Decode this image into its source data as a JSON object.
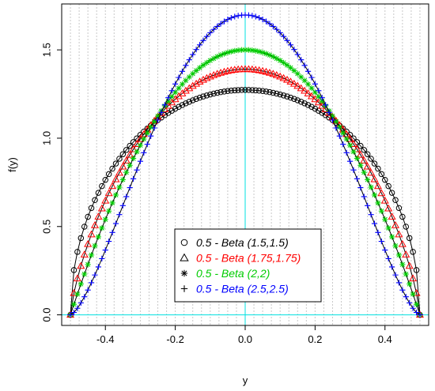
{
  "chart_data": {
    "type": "scatter",
    "title": "",
    "xlabel": "y",
    "ylabel": "f(y)",
    "xlim": [
      -0.525,
      0.525
    ],
    "ylim": [
      -0.06,
      1.76
    ],
    "x_ticks": [
      -0.4,
      -0.2,
      0.0,
      0.2,
      0.4
    ],
    "x_tick_labels": [
      "-0.4",
      "-0.2",
      "0.0",
      "0.2",
      "0.4"
    ],
    "y_ticks": [
      0.0,
      0.5,
      1.0,
      1.5
    ],
    "y_tick_labels": [
      "0.0",
      "0.5",
      "1.0",
      "1.5"
    ],
    "vertical_grid": "dotted gray lines every 0.025, plus cyan line at x = 0",
    "horizontal_reference": "cyan line at y = 0",
    "legend_position": "bottom-center",
    "density": "f(y) = Beta(y + 0.5; a, b)",
    "x_range": [
      -0.5,
      0.5
    ],
    "point_spacing": 0.01,
    "series": [
      {
        "name": "0.5 - Beta (1.5,1.5)",
        "a": 1.5,
        "b": 1.5,
        "marker": "circle",
        "color": "#000000",
        "peak": [
          0.0,
          1.273
        ],
        "sample_values": [
          [
            -0.5,
            0.0
          ],
          [
            -0.4,
            0.764
          ],
          [
            -0.25,
            1.103
          ],
          [
            0.0,
            1.273
          ],
          [
            0.25,
            1.103
          ],
          [
            0.4,
            0.764
          ],
          [
            0.5,
            0.0
          ]
        ]
      },
      {
        "name": "0.5 - Beta (1.75,1.75)",
        "a": 1.75,
        "b": 1.75,
        "marker": "triangle",
        "color": "#ff0000",
        "peak": [
          0.0,
          1.39
        ],
        "sample_values": [
          [
            -0.5,
            0.0
          ],
          [
            -0.4,
            0.63
          ],
          [
            -0.25,
            1.1
          ],
          [
            0.0,
            1.39
          ],
          [
            0.25,
            1.1
          ],
          [
            0.4,
            0.63
          ],
          [
            0.5,
            0.0
          ]
        ]
      },
      {
        "name": "0.5 - Beta (2,2)",
        "a": 2,
        "b": 2,
        "marker": "asterisk",
        "color": "#00cc00",
        "peak": [
          0.0,
          1.5
        ],
        "sample_values": [
          [
            -0.5,
            0.0
          ],
          [
            -0.4,
            0.54
          ],
          [
            -0.25,
            1.125
          ],
          [
            0.0,
            1.5
          ],
          [
            0.25,
            1.125
          ],
          [
            0.4,
            0.54
          ],
          [
            0.5,
            0.0
          ]
        ]
      },
      {
        "name": "0.5 - Beta (2.5,2.5)",
        "a": 2.5,
        "b": 2.5,
        "marker": "plus",
        "color": "#0000ff",
        "peak": [
          0.0,
          1.7
        ],
        "sample_values": [
          [
            -0.5,
            0.0
          ],
          [
            -0.4,
            0.39
          ],
          [
            -0.25,
            1.1
          ],
          [
            0.0,
            1.7
          ],
          [
            0.25,
            1.1
          ],
          [
            0.4,
            0.39
          ],
          [
            0.5,
            0.0
          ]
        ]
      }
    ]
  }
}
